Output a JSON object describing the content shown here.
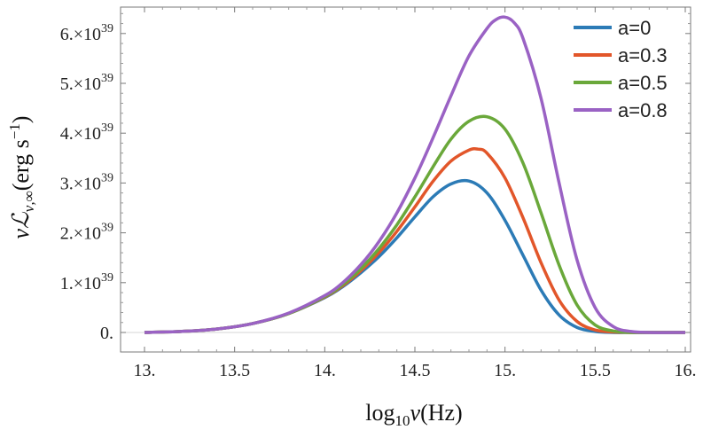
{
  "chart_data": {
    "type": "line",
    "title": "",
    "xlabel_main": "log",
    "xlabel_sub": "10",
    "xlabel_var": "ν",
    "xlabel_unit": "(Hz)",
    "ylabel_main": "νℒ",
    "ylabel_sub": "ν,∞",
    "ylabel_unit": "(erg s",
    "ylabel_unit_sup": "−1",
    "ylabel_close": ")",
    "xlim": [
      13.0,
      16.0
    ],
    "ylim": [
      0,
      6.5e+39
    ],
    "xticks": [
      {
        "value": 13.0,
        "label": "13."
      },
      {
        "value": 13.5,
        "label": "13.5"
      },
      {
        "value": 14.0,
        "label": "14."
      },
      {
        "value": 14.5,
        "label": "14.5"
      },
      {
        "value": 15.0,
        "label": "15."
      },
      {
        "value": 15.5,
        "label": "15.5"
      },
      {
        "value": 16.0,
        "label": "16."
      }
    ],
    "yticks": [
      {
        "value": 0,
        "label": "0.",
        "mantissa": "",
        "exp": ""
      },
      {
        "value": 1e+39,
        "label": "",
        "mantissa": "1.×10",
        "exp": "39"
      },
      {
        "value": 2e+39,
        "label": "",
        "mantissa": "2.×10",
        "exp": "39"
      },
      {
        "value": 3e+39,
        "label": "",
        "mantissa": "3.×10",
        "exp": "39"
      },
      {
        "value": 4e+39,
        "label": "",
        "mantissa": "4.×10",
        "exp": "39"
      },
      {
        "value": 5e+39,
        "label": "",
        "mantissa": "5.×10",
        "exp": "39"
      },
      {
        "value": 6e+39,
        "label": "",
        "mantissa": "6.×10",
        "exp": "39"
      }
    ],
    "legend_position": "top-right",
    "series": [
      {
        "name": "a=0",
        "color": "#2c7bb6",
        "x": [
          13.0,
          13.2,
          13.4,
          13.6,
          13.8,
          14.0,
          14.1,
          14.2,
          14.3,
          14.4,
          14.5,
          14.6,
          14.7,
          14.8,
          14.9,
          15.0,
          15.1,
          15.2,
          15.3,
          15.4,
          15.5,
          15.6,
          15.7,
          15.8,
          16.0
        ],
        "y": [
          0.0,
          2e+37,
          7e+37,
          1.8e+38,
          3.8e+38,
          7e+38,
          9.2e+38,
          1.2e+39,
          1.52e+39,
          1.9e+39,
          2.32e+39,
          2.72e+39,
          2.98e+39,
          3.04e+39,
          2.8e+39,
          2.25e+39,
          1.55e+39,
          8.5e+38,
          3.5e+38,
          1e+38,
          2e+37,
          0.0,
          0.0,
          0.0,
          0.0
        ]
      },
      {
        "name": "a=0.3",
        "color": "#e2562a",
        "x": [
          13.0,
          13.2,
          13.4,
          13.6,
          13.8,
          14.0,
          14.1,
          14.2,
          14.3,
          14.4,
          14.5,
          14.6,
          14.7,
          14.8,
          14.85,
          14.9,
          15.0,
          15.1,
          15.2,
          15.3,
          15.4,
          15.5,
          15.6,
          15.7,
          16.0
        ],
        "y": [
          0.0,
          2e+37,
          7e+37,
          1.8e+38,
          3.8e+38,
          7.1e+38,
          9.4e+38,
          1.24e+39,
          1.6e+39,
          2.03e+39,
          2.52e+39,
          3.03e+39,
          3.44e+39,
          3.66e+39,
          3.68e+39,
          3.6e+39,
          3.1e+39,
          2.3e+39,
          1.4e+39,
          6.5e+38,
          2.2e+38,
          5e+37,
          1e+37,
          0.0,
          0.0
        ]
      },
      {
        "name": "a=0.5",
        "color": "#6aa83a",
        "x": [
          13.0,
          13.2,
          13.4,
          13.6,
          13.8,
          14.0,
          14.1,
          14.2,
          14.3,
          14.4,
          14.5,
          14.6,
          14.7,
          14.8,
          14.9,
          15.0,
          15.1,
          15.2,
          15.3,
          15.4,
          15.5,
          15.6,
          15.7,
          15.8,
          16.0
        ],
        "y": [
          0.0,
          2e+37,
          7e+37,
          1.8e+38,
          3.8e+38,
          7.2e+38,
          9.6e+38,
          1.28e+39,
          1.68e+39,
          2.16e+39,
          2.72e+39,
          3.32e+39,
          3.88e+39,
          4.24e+39,
          4.33e+39,
          4.08e+39,
          3.4e+39,
          2.4e+39,
          1.35e+39,
          5.5e+38,
          1.5e+38,
          3e+37,
          0.0,
          0.0,
          0.0
        ]
      },
      {
        "name": "a=0.8",
        "color": "#9a62c4",
        "x": [
          13.0,
          13.2,
          13.4,
          13.6,
          13.8,
          14.0,
          14.1,
          14.2,
          14.3,
          14.4,
          14.5,
          14.6,
          14.7,
          14.8,
          14.9,
          14.95,
          15.0,
          15.05,
          15.1,
          15.2,
          15.3,
          15.4,
          15.5,
          15.6,
          15.7,
          15.8,
          16.0
        ],
        "y": [
          0.0,
          2e+37,
          7e+37,
          1.8e+38,
          3.9e+38,
          7.4e+38,
          1e+39,
          1.36e+39,
          1.82e+39,
          2.4e+39,
          3.1e+39,
          3.9e+39,
          4.75e+39,
          5.55e+39,
          6.1e+39,
          6.28e+39,
          6.33e+39,
          6.22e+39,
          5.9e+39,
          4.7e+39,
          3e+39,
          1.45e+39,
          5e+38,
          1.2e+38,
          2e+37,
          0.0,
          0.0
        ]
      }
    ]
  }
}
